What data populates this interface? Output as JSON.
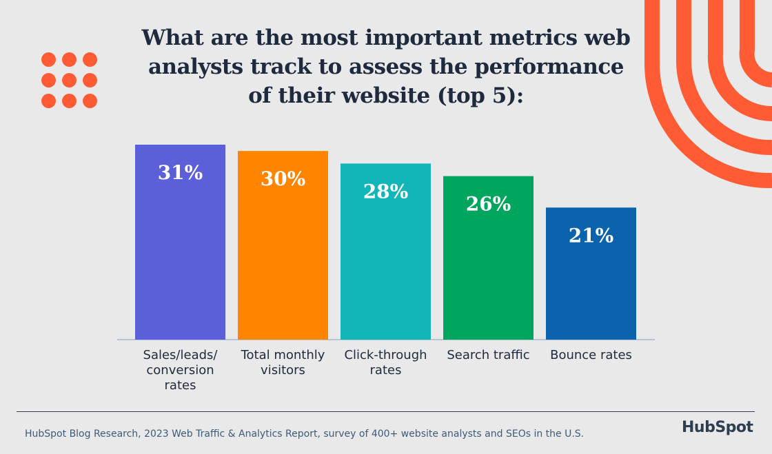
{
  "title_lines": [
    "What are the most important metrics web",
    "analysts track to assess the performance",
    "of their website (top 5):"
  ],
  "chart_data": {
    "type": "bar",
    "categories": [
      "Sales/leads/ conversion rates",
      "Total monthly visitors",
      "Click-through rates",
      "Search traffic",
      "Bounce rates"
    ],
    "category_lines": [
      [
        "Sales/leads/",
        "conversion",
        "rates"
      ],
      [
        "Total monthly",
        "visitors"
      ],
      [
        "Click-through",
        "rates"
      ],
      [
        "Search traffic"
      ],
      [
        "Bounce rates"
      ]
    ],
    "values": [
      31,
      30,
      28,
      26,
      21
    ],
    "value_labels": [
      "31%",
      "30%",
      "28%",
      "26%",
      "21%"
    ],
    "colors": [
      "#5b5fd8",
      "#ff8500",
      "#12b5b8",
      "#00a65d",
      "#0a63ac"
    ],
    "ylim": [
      0,
      31
    ],
    "grid": false
  },
  "colors": {
    "accent": "#ff5c35",
    "text": "#1e2a3d",
    "background": "#e9e9e9"
  },
  "footer": {
    "source": "HubSpot Blog Research, 2023 Web Traffic & Analytics Report, survey of 400+ website analysts and SEOs in the U.S.",
    "logo": "HubSpot"
  }
}
